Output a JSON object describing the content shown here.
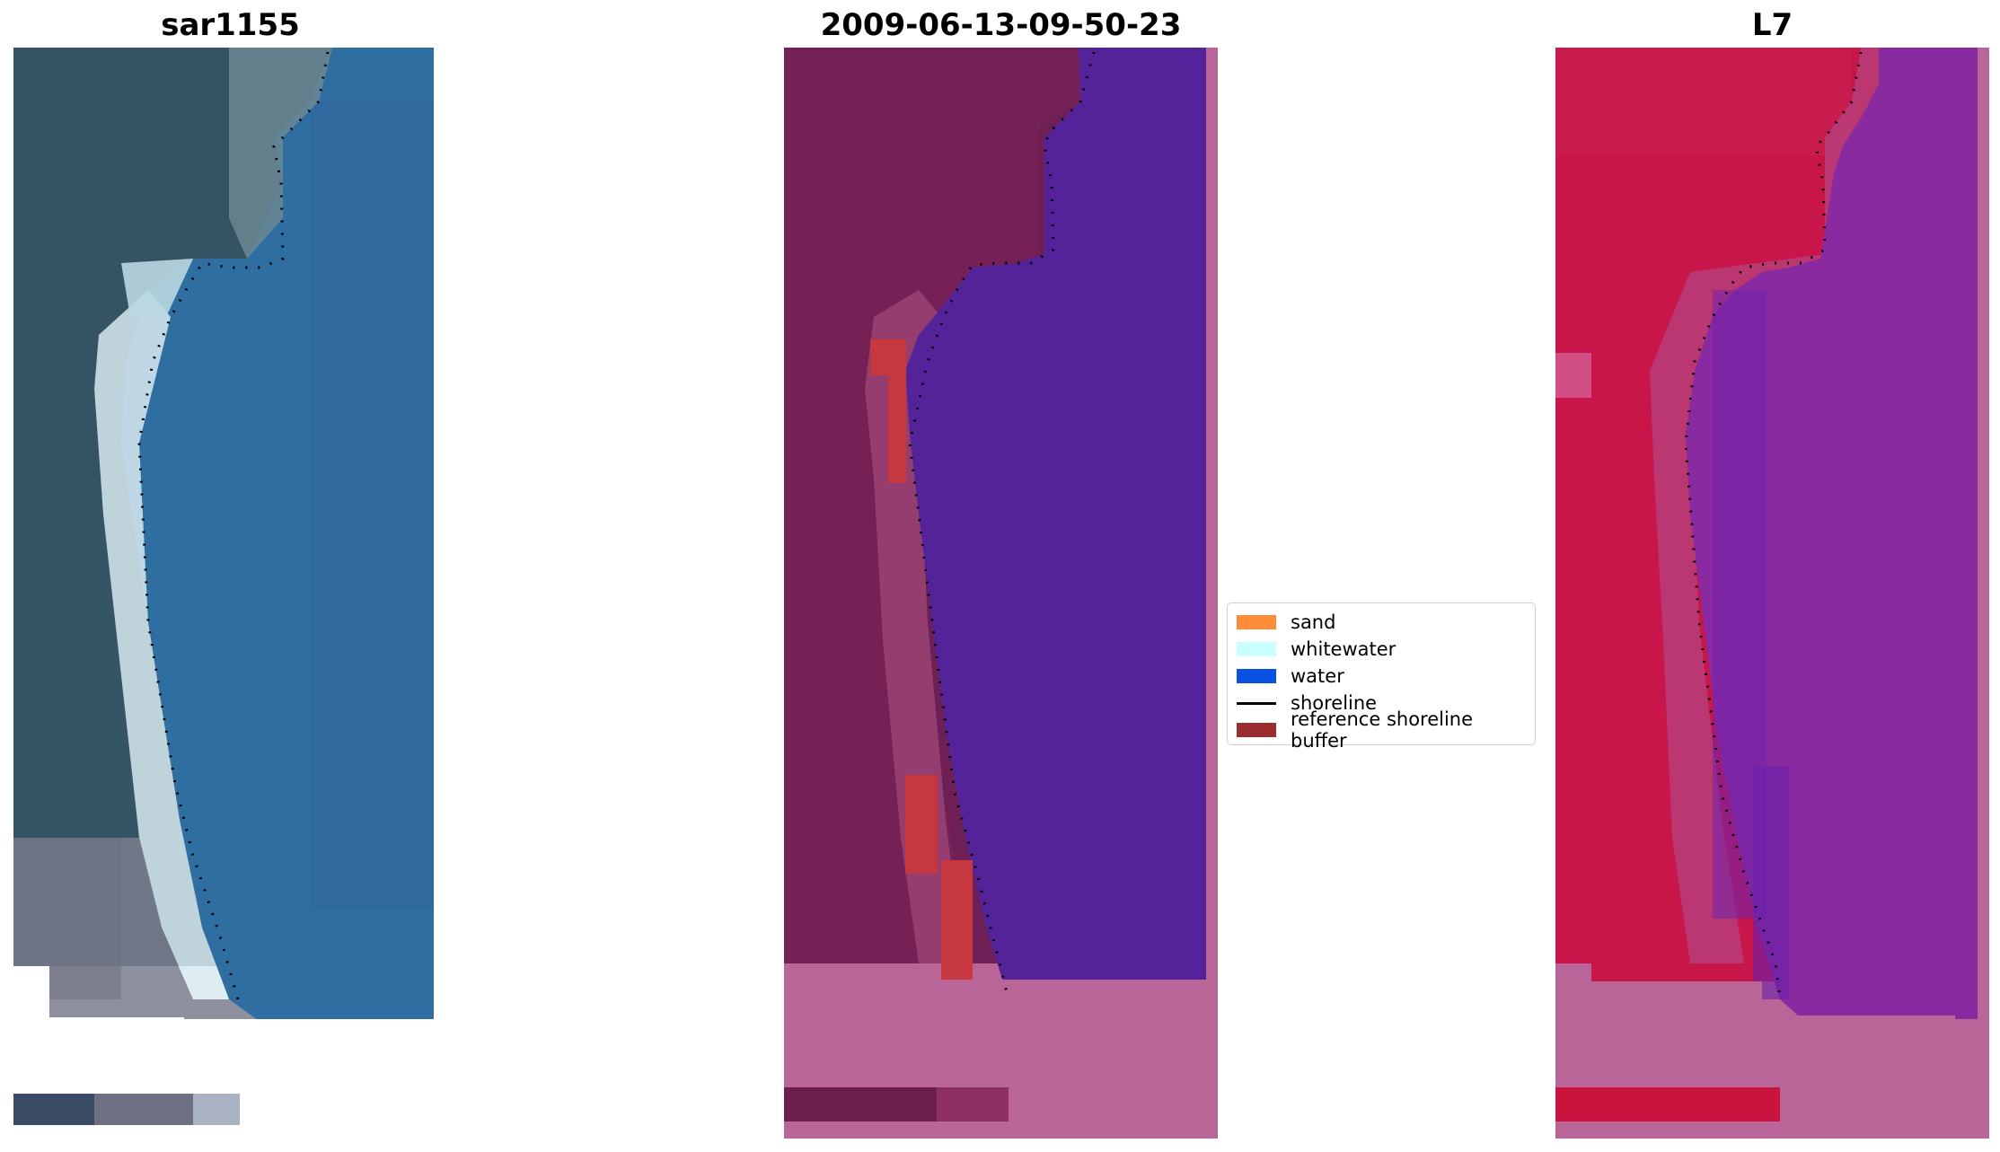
{
  "panels": [
    {
      "title": "sar1155"
    },
    {
      "title": "2009-06-13-09-50-23"
    },
    {
      "title": "L7"
    }
  ],
  "legend": {
    "items": [
      {
        "label": "sand",
        "color": "#ff8c3a",
        "type": "patch"
      },
      {
        "label": "whitewater",
        "color": "#c8ffff",
        "type": "patch"
      },
      {
        "label": "water",
        "color": "#0a52e6",
        "type": "patch"
      },
      {
        "label": "shoreline",
        "color": "#000000",
        "type": "line"
      },
      {
        "label": "reference shoreline buffer",
        "color": "#9b2d30",
        "type": "patch"
      }
    ]
  },
  "colors": {
    "rgb_land": "#345363",
    "rgb_sea": "#2f6ea0",
    "rgb_sand": "#d8eaf0",
    "class_land": "#6e1f55",
    "class_water": "#54239a",
    "class_nodata": "#b96597",
    "class_buffer": "#c7383e",
    "mndwi_land": "#c8164b",
    "mndwi_water": "#8a2aa0",
    "mndwi_nodata": "#b96597"
  }
}
